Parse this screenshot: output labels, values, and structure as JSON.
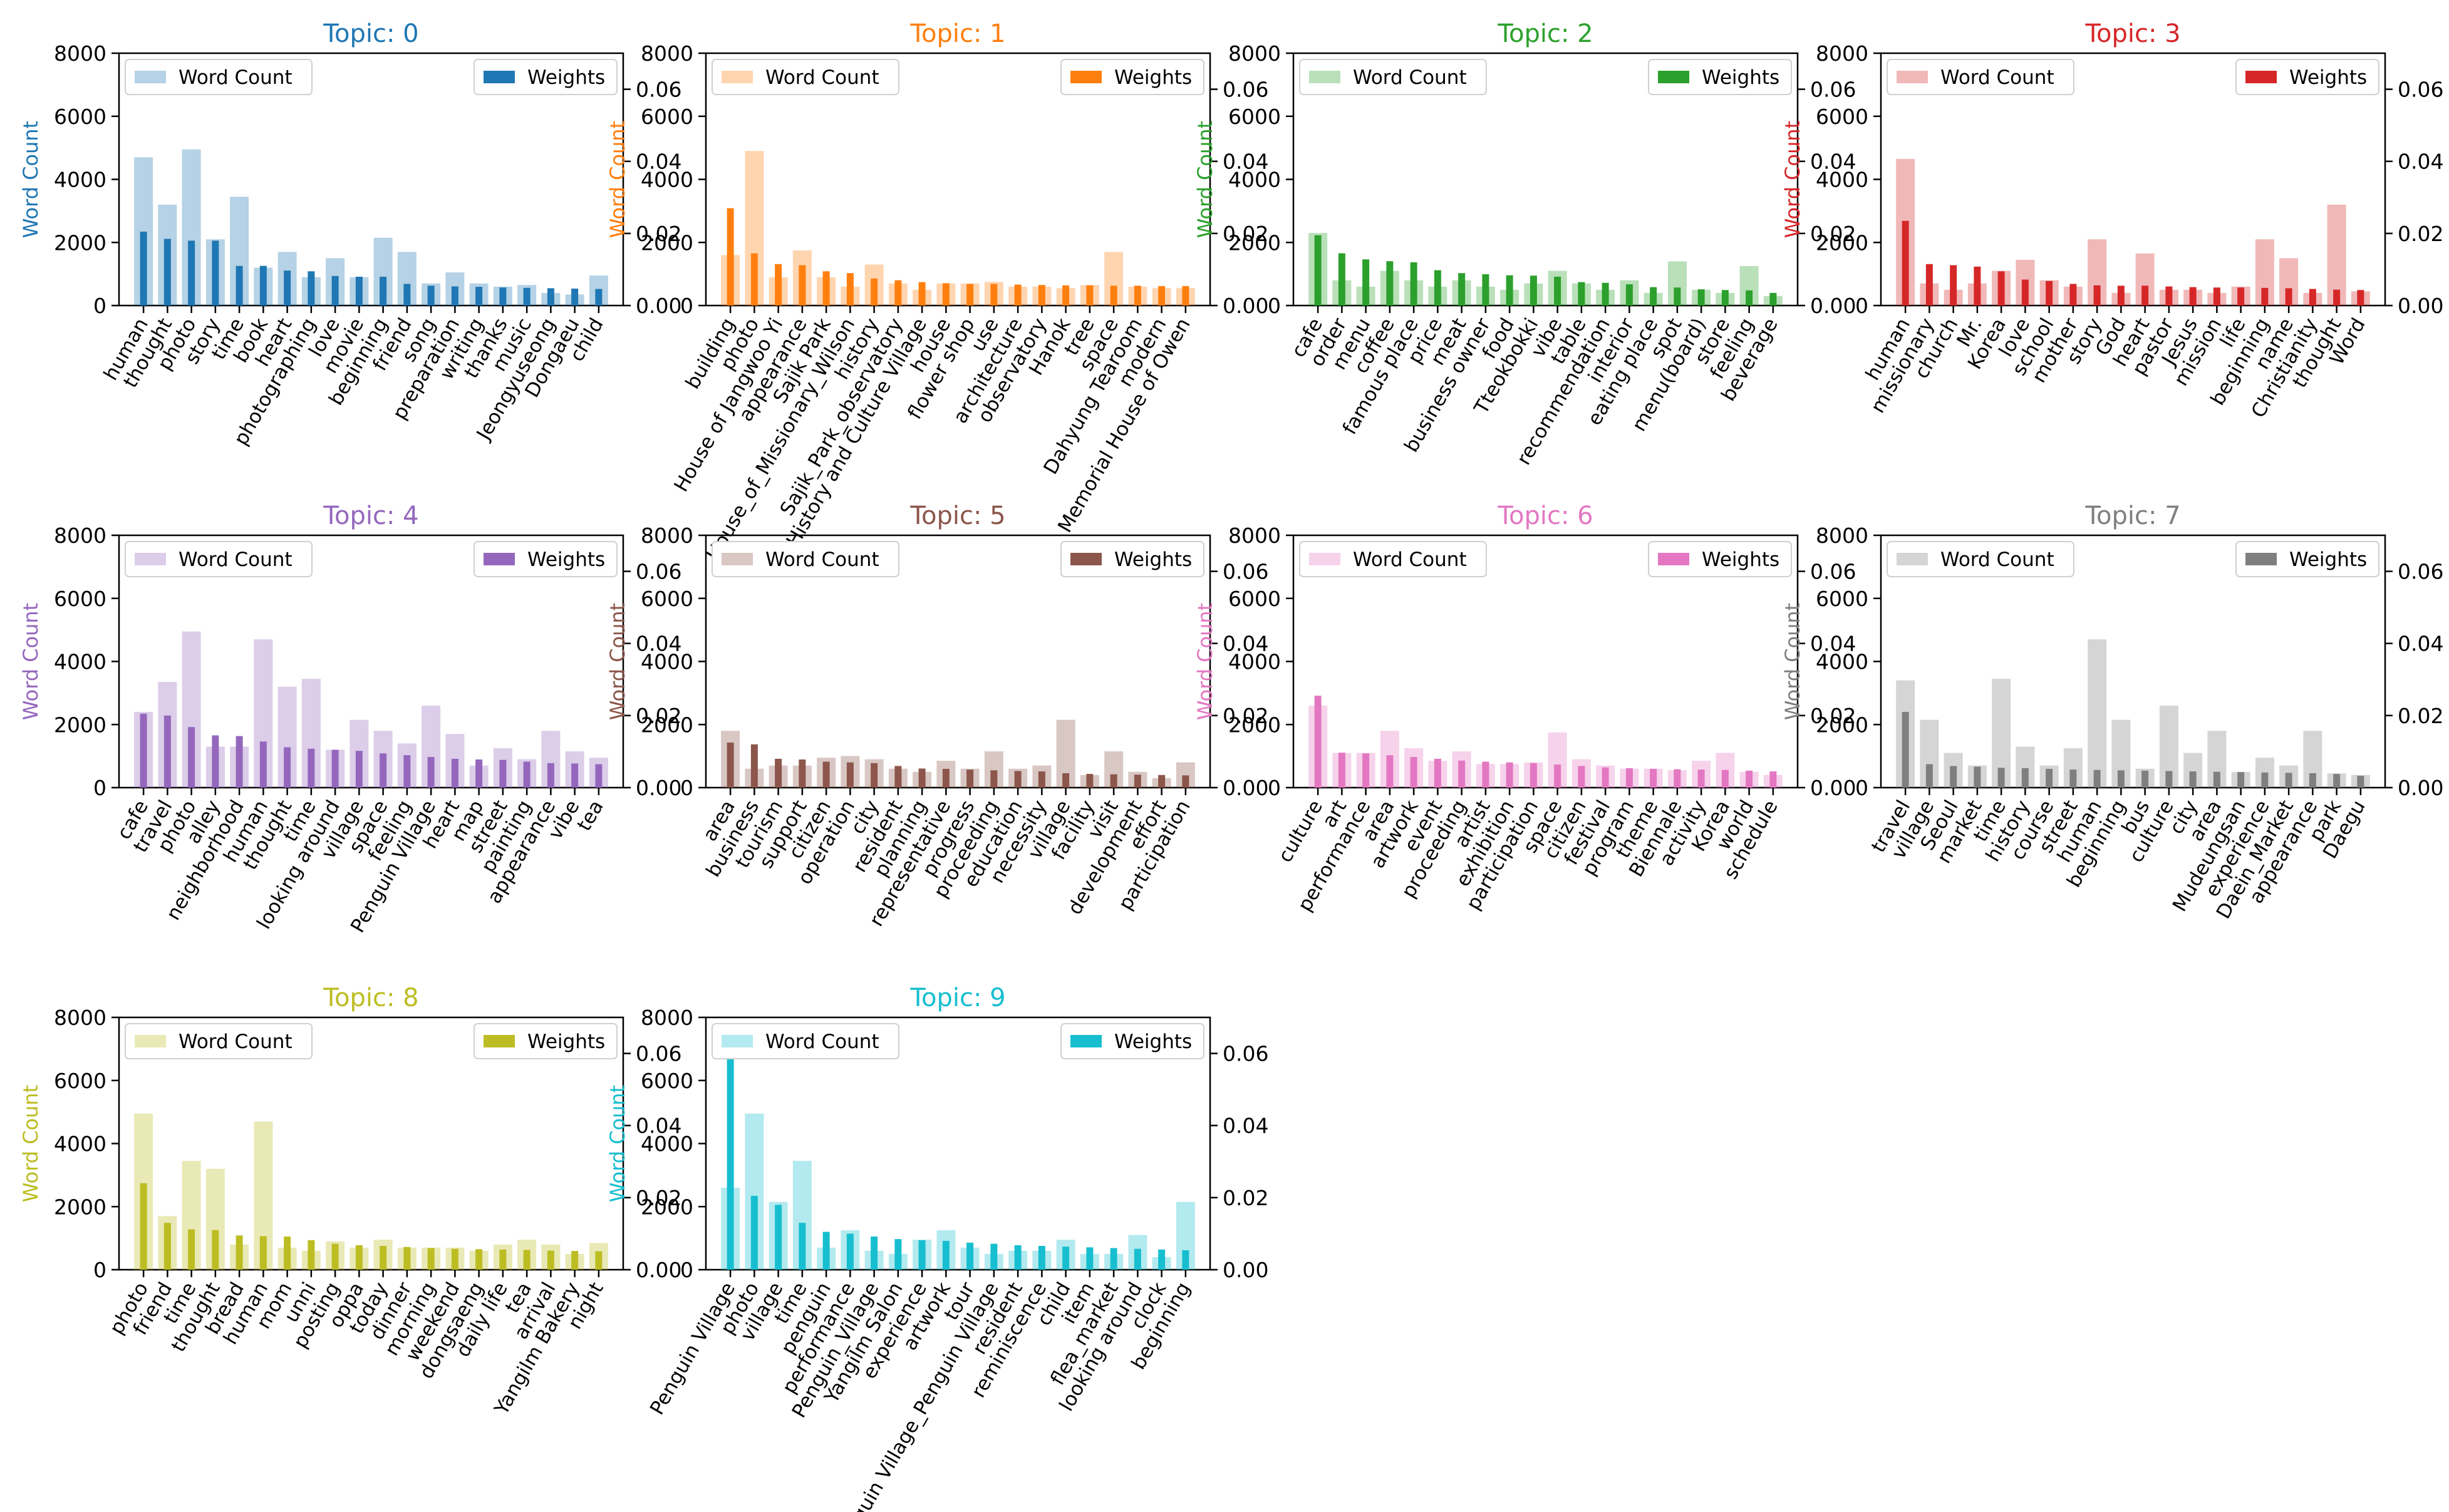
{
  "legend": {
    "count_label": "Word Count",
    "weight_label": "Weights"
  },
  "axes": {
    "left_label": "Word Count",
    "left_ticks": [
      "0",
      "2000",
      "4000",
      "6000",
      "8000"
    ],
    "right_ticks": [
      "0.00",
      "0.02",
      "0.04",
      "0.06"
    ]
  },
  "chart_data": [
    {
      "type": "bar",
      "title": "Topic: 0",
      "color": "#1f77b4",
      "ylabel": "Word Count",
      "ylim": [
        0,
        8000
      ],
      "y2lim": [
        0,
        0.07
      ],
      "legend": [
        "Word Count",
        "Weights"
      ],
      "categories": [
        "human",
        "thought",
        "photo",
        "story",
        "time",
        "book",
        "heart",
        "photographing",
        "love",
        "movie",
        "beginning",
        "friend",
        "song",
        "preparation",
        "writing",
        "thanks",
        "music",
        "Jeongyuseong",
        "Dongaeu",
        "child"
      ],
      "series": [
        {
          "name": "Word Count",
          "axis": "left",
          "values": [
            4700,
            3200,
            4950,
            2100,
            3450,
            1200,
            1700,
            900,
            1500,
            900,
            2150,
            1700,
            700,
            1050,
            700,
            600,
            650,
            400,
            350,
            950
          ]
        },
        {
          "name": "Weights",
          "axis": "right",
          "values": [
            0.0205,
            0.0185,
            0.018,
            0.018,
            0.011,
            0.011,
            0.0097,
            0.0095,
            0.0082,
            0.008,
            0.008,
            0.006,
            0.0055,
            0.0053,
            0.0052,
            0.005,
            0.0049,
            0.0048,
            0.0047,
            0.0046
          ]
        }
      ]
    },
    {
      "type": "bar",
      "title": "Topic: 1",
      "color": "#ff7f0e",
      "ylabel": "Word Count",
      "ylim": [
        0,
        8000
      ],
      "y2lim": [
        0,
        0.07
      ],
      "legend": [
        "Word Count",
        "Weights"
      ],
      "categories": [
        "building",
        "photo",
        "House of Jangwoo Yi",
        "appearance",
        "Sajik Park",
        "House_of_Missionary_Wilson",
        "history",
        "Sajik_Park_observatory",
        "History and Culture Village",
        "house",
        "flower shop",
        "use",
        "architecture",
        "observatory",
        "Hanok",
        "tree",
        "space",
        "Dahyung Tearoom",
        "modern",
        "Memorial House of Owen"
      ],
      "series": [
        {
          "name": "Word Count",
          "axis": "left",
          "values": [
            1600,
            4900,
            900,
            1750,
            900,
            600,
            1300,
            700,
            500,
            700,
            700,
            750,
            600,
            600,
            550,
            650,
            1700,
            600,
            550,
            550
          ]
        },
        {
          "name": "Weights",
          "axis": "right",
          "values": [
            0.027,
            0.0145,
            0.0115,
            0.0112,
            0.0095,
            0.009,
            0.0075,
            0.007,
            0.0065,
            0.0062,
            0.006,
            0.006,
            0.0058,
            0.0057,
            0.0056,
            0.0056,
            0.0055,
            0.0055,
            0.0054,
            0.0054
          ]
        }
      ]
    },
    {
      "type": "bar",
      "title": "Topic: 2",
      "color": "#2ca02c",
      "ylabel": "Word Count",
      "ylim": [
        0,
        8000
      ],
      "y2lim": [
        0,
        0.07
      ],
      "legend": [
        "Word Count",
        "Weights"
      ],
      "categories": [
        "cafe",
        "order",
        "menu",
        "coffee",
        "famous place",
        "price",
        "meat",
        "business owner",
        "food",
        "Tteokbokki",
        "vibe",
        "table",
        "recommendation",
        "interior",
        "eating place",
        "spot",
        "menu(board)",
        "store",
        "feeling",
        "beverage"
      ],
      "series": [
        {
          "name": "Word Count",
          "axis": "left",
          "values": [
            2300,
            800,
            600,
            1100,
            800,
            600,
            800,
            600,
            500,
            700,
            1100,
            700,
            500,
            800,
            400,
            1400,
            500,
            400,
            1250,
            300
          ]
        },
        {
          "name": "Weights",
          "axis": "right",
          "values": [
            0.0195,
            0.0145,
            0.0128,
            0.0123,
            0.012,
            0.0098,
            0.009,
            0.0087,
            0.0084,
            0.0083,
            0.008,
            0.0065,
            0.0063,
            0.0059,
            0.0051,
            0.005,
            0.0045,
            0.0043,
            0.0042,
            0.0035
          ]
        }
      ]
    },
    {
      "type": "bar",
      "title": "Topic: 3",
      "color": "#d62728",
      "ylabel": "Word Count",
      "ylim": [
        0,
        8000
      ],
      "y2lim": [
        0,
        0.07
      ],
      "legend": [
        "Word Count",
        "Weights"
      ],
      "categories": [
        "human",
        "missionary",
        "church",
        "Mr.",
        "Korea",
        "love",
        "school",
        "mother",
        "story",
        "God",
        "heart",
        "pastor",
        "Jesus",
        "mission",
        "life",
        "beginning",
        "name",
        "Christianity",
        "thought",
        "Word"
      ],
      "series": [
        {
          "name": "Word Count",
          "axis": "left",
          "values": [
            4650,
            700,
            500,
            700,
            1100,
            1450,
            800,
            600,
            2100,
            400,
            1650,
            500,
            500,
            400,
            600,
            2100,
            1500,
            400,
            3200,
            450
          ]
        },
        {
          "name": "Weights",
          "axis": "right",
          "values": [
            0.0235,
            0.0115,
            0.0112,
            0.0108,
            0.0095,
            0.0072,
            0.0068,
            0.006,
            0.0056,
            0.0055,
            0.0055,
            0.0053,
            0.0051,
            0.005,
            0.005,
            0.0049,
            0.0048,
            0.0046,
            0.0044,
            0.0043
          ]
        }
      ]
    },
    {
      "type": "bar",
      "title": "Topic: 4",
      "color": "#9467bd",
      "ylabel": "Word Count",
      "ylim": [
        0,
        8000
      ],
      "y2lim": [
        0,
        0.07
      ],
      "legend": [
        "Word Count",
        "Weights"
      ],
      "categories": [
        "cafe",
        "travel",
        "photo",
        "alley",
        "neighborhood",
        "human",
        "thought",
        "time",
        "looking around",
        "village",
        "space",
        "feeling",
        "Penguin Village",
        "heart",
        "map",
        "street",
        "painting",
        "appearance",
        "vibe",
        "tea"
      ],
      "series": [
        {
          "name": "Word Count",
          "axis": "left",
          "values": [
            2400,
            3350,
            4950,
            1300,
            1300,
            4700,
            3200,
            3450,
            1200,
            2150,
            1800,
            1400,
            2600,
            1700,
            700,
            1250,
            900,
            1800,
            1150,
            950
          ]
        },
        {
          "name": "Weights",
          "axis": "right",
          "values": [
            0.0205,
            0.02,
            0.0168,
            0.0145,
            0.0143,
            0.0128,
            0.0112,
            0.0108,
            0.0105,
            0.0102,
            0.0095,
            0.009,
            0.0085,
            0.008,
            0.0078,
            0.0077,
            0.0072,
            0.0068,
            0.0067,
            0.0065
          ]
        }
      ]
    },
    {
      "type": "bar",
      "title": "Topic: 5",
      "color": "#8c564b",
      "ylabel": "Word Count",
      "ylim": [
        0,
        8000
      ],
      "y2lim": [
        0,
        0.07
      ],
      "legend": [
        "Word Count",
        "Weights"
      ],
      "categories": [
        "area",
        "business",
        "tourism",
        "support",
        "citizen",
        "operation",
        "city",
        "resident",
        "planning",
        "representative",
        "progress",
        "proceeding",
        "education",
        "necessity",
        "village",
        "facility",
        "visit",
        "development",
        "effort",
        "participation"
      ],
      "series": [
        {
          "name": "Word Count",
          "axis": "left",
          "values": [
            1800,
            600,
            700,
            700,
            950,
            1000,
            900,
            600,
            500,
            850,
            600,
            1150,
            600,
            700,
            2150,
            400,
            1150,
            500,
            300,
            800
          ]
        },
        {
          "name": "Weights",
          "axis": "right",
          "values": [
            0.0125,
            0.012,
            0.008,
            0.0078,
            0.0072,
            0.007,
            0.0068,
            0.006,
            0.0053,
            0.0052,
            0.005,
            0.0048,
            0.0046,
            0.0045,
            0.004,
            0.0038,
            0.0037,
            0.0036,
            0.0035,
            0.0034
          ]
        }
      ]
    },
    {
      "type": "bar",
      "title": "Topic: 6",
      "color": "#e377c2",
      "ylabel": "Word Count",
      "ylim": [
        0,
        8000
      ],
      "y2lim": [
        0,
        0.07
      ],
      "legend": [
        "Word Count",
        "Weights"
      ],
      "categories": [
        "culture",
        "art",
        "performance",
        "area",
        "artwork",
        "event",
        "proceeding",
        "artist",
        "exhibition",
        "participation",
        "space",
        "citizen",
        "festival",
        "program",
        "theme",
        "Biennale",
        "activity",
        "Korea",
        "world",
        "schedule"
      ],
      "series": [
        {
          "name": "Word Count",
          "axis": "left",
          "values": [
            2600,
            1100,
            1100,
            1800,
            1250,
            850,
            1150,
            750,
            750,
            800,
            1750,
            900,
            700,
            600,
            600,
            550,
            850,
            1100,
            500,
            400
          ]
        },
        {
          "name": "Weights",
          "axis": "right",
          "values": [
            0.0255,
            0.0097,
            0.0095,
            0.009,
            0.0085,
            0.008,
            0.0075,
            0.0072,
            0.007,
            0.0068,
            0.0064,
            0.006,
            0.0056,
            0.0054,
            0.0052,
            0.0051,
            0.005,
            0.0049,
            0.0047,
            0.0045
          ]
        }
      ]
    },
    {
      "type": "bar",
      "title": "Topic: 7",
      "color": "#7f7f7f",
      "ylabel": "Word Count",
      "ylim": [
        0,
        8000
      ],
      "y2lim": [
        0,
        0.07
      ],
      "legend": [
        "Word Count",
        "Weights"
      ],
      "categories": [
        "travel",
        "village",
        "Seoul",
        "market",
        "time",
        "history",
        "course",
        "street",
        "human",
        "beginning",
        "bus",
        "culture",
        "city",
        "area",
        "Mudeungsan",
        "experience",
        "Daein_Market",
        "appearance",
        "park",
        "Daegu"
      ],
      "series": [
        {
          "name": "Word Count",
          "axis": "left",
          "values": [
            3400,
            2150,
            1100,
            700,
            3450,
            1300,
            700,
            1250,
            4700,
            2150,
            600,
            2600,
            1100,
            1800,
            500,
            950,
            700,
            1800,
            450,
            400
          ]
        },
        {
          "name": "Weights",
          "axis": "right",
          "values": [
            0.021,
            0.0065,
            0.006,
            0.0058,
            0.0055,
            0.0054,
            0.0052,
            0.005,
            0.0049,
            0.0048,
            0.0047,
            0.0046,
            0.0045,
            0.0044,
            0.0043,
            0.0042,
            0.0041,
            0.004,
            0.0038,
            0.0033
          ]
        }
      ]
    },
    {
      "type": "bar",
      "title": "Topic: 8",
      "color": "#bcbd22",
      "ylabel": "Word Count",
      "ylim": [
        0,
        8000
      ],
      "y2lim": [
        0,
        0.07
      ],
      "legend": [
        "Word Count",
        "Weights"
      ],
      "categories": [
        "photo",
        "friend",
        "time",
        "thought",
        "bread",
        "human",
        "mom",
        "unni",
        "posting",
        "oppa",
        "today",
        "dinner",
        "morning",
        "weekend",
        "dongsaeng",
        "daily life",
        "tea",
        "arrival",
        "Yangilm Bakery",
        "night"
      ],
      "series": [
        {
          "name": "Word Count",
          "axis": "left",
          "values": [
            4950,
            1700,
            3450,
            3200,
            800,
            4700,
            700,
            600,
            900,
            700,
            950,
            700,
            700,
            700,
            600,
            800,
            950,
            800,
            500,
            850
          ]
        },
        {
          "name": "Weights",
          "axis": "right",
          "values": [
            0.024,
            0.013,
            0.0112,
            0.011,
            0.0095,
            0.0093,
            0.0092,
            0.0082,
            0.0072,
            0.0068,
            0.0066,
            0.0063,
            0.006,
            0.0058,
            0.0057,
            0.0056,
            0.0055,
            0.0053,
            0.0052,
            0.0051
          ]
        }
      ]
    },
    {
      "type": "bar",
      "title": "Topic: 9",
      "color": "#17becf",
      "ylabel": "Word Count",
      "ylim": [
        0,
        8000
      ],
      "y2lim": [
        0,
        0.07
      ],
      "legend": [
        "Word Count",
        "Weights"
      ],
      "categories": [
        "Penguin Village",
        "photo",
        "village",
        "time",
        "penguin",
        "performance",
        "Penguin_Village",
        "Yangilm Salon",
        "experience",
        "artwork",
        "tour",
        "Penguin Village_Penguin Village",
        "resident",
        "reminiscence",
        "child",
        "item",
        "flea_market",
        "looking around",
        "clock",
        "beginning"
      ],
      "series": [
        {
          "name": "Word Count",
          "axis": "left",
          "values": [
            2600,
            4950,
            2150,
            3450,
            700,
            1250,
            600,
            500,
            950,
            1250,
            700,
            500,
            600,
            600,
            950,
            500,
            500,
            1100,
            400,
            2150
          ]
        },
        {
          "name": "Weights",
          "axis": "right",
          "values": [
            0.0585,
            0.0205,
            0.018,
            0.013,
            0.0105,
            0.01,
            0.0092,
            0.0085,
            0.0082,
            0.008,
            0.0075,
            0.0072,
            0.0068,
            0.0066,
            0.0064,
            0.0062,
            0.006,
            0.0058,
            0.0056,
            0.0054
          ]
        }
      ]
    }
  ]
}
